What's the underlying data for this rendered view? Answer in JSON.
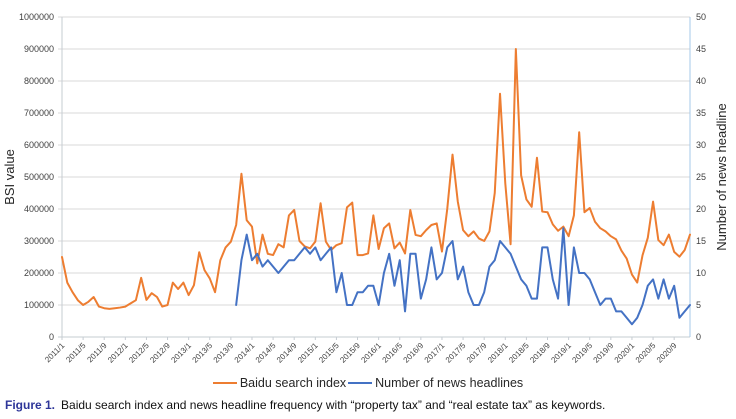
{
  "chart_data": {
    "type": "line",
    "title": "",
    "x_start": "2011/1",
    "x_end": "2020/12",
    "x_interval": "monthly",
    "x_points": 120,
    "x_tick_labels": [
      "2011/1",
      "2011/5",
      "2011/9",
      "2012/1",
      "2012/5",
      "2012/9",
      "2013/1",
      "2013/5",
      "2013/9",
      "2014/1",
      "2014/5",
      "2014/9",
      "2015/1",
      "2015/5",
      "2015/9",
      "2016/1",
      "2016/5",
      "2016/9",
      "2017/1",
      "2017/5",
      "2017/9",
      "2018/1",
      "2018/5",
      "2018/9",
      "2019/1",
      "2019/5",
      "2019/9",
      "2020/1",
      "2020/5",
      "2020/9"
    ],
    "x_tick_every_n_months": 4,
    "left_axis": {
      "label": "BSI value",
      "min": 0,
      "max": 1000000,
      "step": 100000
    },
    "right_axis": {
      "label": "Number of news headline",
      "min": 0,
      "max": 50,
      "step": 5
    },
    "grid": "horizontal",
    "legend_position": "bottom",
    "series": [
      {
        "name": "Baidu search index",
        "axis": "left",
        "color": "#ED7D31",
        "start_index": 0,
        "values": [
          250000,
          170000,
          140000,
          115000,
          100000,
          110000,
          125000,
          95000,
          90000,
          88000,
          90000,
          92000,
          95000,
          105000,
          115000,
          185000,
          116000,
          137000,
          125000,
          95000,
          100000,
          170000,
          150000,
          170000,
          131000,
          162000,
          265000,
          209000,
          183000,
          140000,
          240000,
          280000,
          298000,
          350000,
          510000,
          365000,
          345000,
          230000,
          320000,
          260000,
          256000,
          290000,
          280000,
          380000,
          397000,
          300000,
          283000,
          277000,
          298000,
          418000,
          298000,
          272000,
          287000,
          293000,
          405000,
          420000,
          256000,
          256000,
          261000,
          380000,
          275000,
          340000,
          355000,
          277000,
          295000,
          261000,
          397000,
          319000,
          315000,
          334000,
          350000,
          355000,
          267000,
          400000,
          570000,
          423000,
          334000,
          315000,
          330000,
          308000,
          300000,
          330000,
          450000,
          760000,
          480000,
          290000,
          900000,
          505000,
          430000,
          407000,
          560000,
          392000,
          390000,
          352000,
          332000,
          345000,
          315000,
          380000,
          640000,
          390000,
          403000,
          360000,
          340000,
          330000,
          315000,
          305000,
          270000,
          245000,
          195000,
          170000,
          255000,
          310000,
          423000,
          303000,
          287000,
          320000,
          266000,
          251000,
          272000,
          320000
        ]
      },
      {
        "name": "Number of news headlines",
        "axis": "right",
        "color": "#4472C4",
        "start_index": 33,
        "values": [
          5,
          12,
          16,
          12,
          13,
          11,
          12,
          11,
          10,
          11,
          12,
          12,
          13,
          14,
          13,
          14,
          12,
          13,
          14,
          7,
          10,
          5,
          5,
          7,
          7,
          8,
          8,
          5,
          10,
          13,
          8,
          12,
          4,
          13,
          13,
          6,
          9,
          14,
          9,
          10,
          14,
          15,
          9,
          11,
          7,
          5,
          5,
          7,
          11,
          12,
          15,
          14,
          13,
          11,
          9,
          8,
          6,
          6,
          14,
          14,
          9,
          6,
          17,
          5,
          14,
          10,
          10,
          9,
          7,
          5,
          6,
          6,
          4,
          4,
          3,
          2,
          3,
          5,
          8,
          9,
          6,
          9,
          6,
          8,
          3,
          4,
          5
        ]
      }
    ]
  },
  "legend": {
    "items": [
      {
        "label": "Baidu search index",
        "color": "#ED7D31"
      },
      {
        "label": "Number of news headlines",
        "color": "#4472C4"
      }
    ]
  },
  "caption": {
    "label": "Figure 1.",
    "text": "Baidu search index and news headline frequency with “property tax” and “real estate tax” as keywords."
  },
  "colors": {
    "gridline": "#D9D9D9",
    "axis_line": "#C6CCD2",
    "right_axis_line": "#A6C9E8",
    "tick_text": "#404040",
    "axis_title_text": "#262626",
    "series_orange": "#ED7D31",
    "series_blue": "#4472C4",
    "figure_label": "#2E3699"
  }
}
